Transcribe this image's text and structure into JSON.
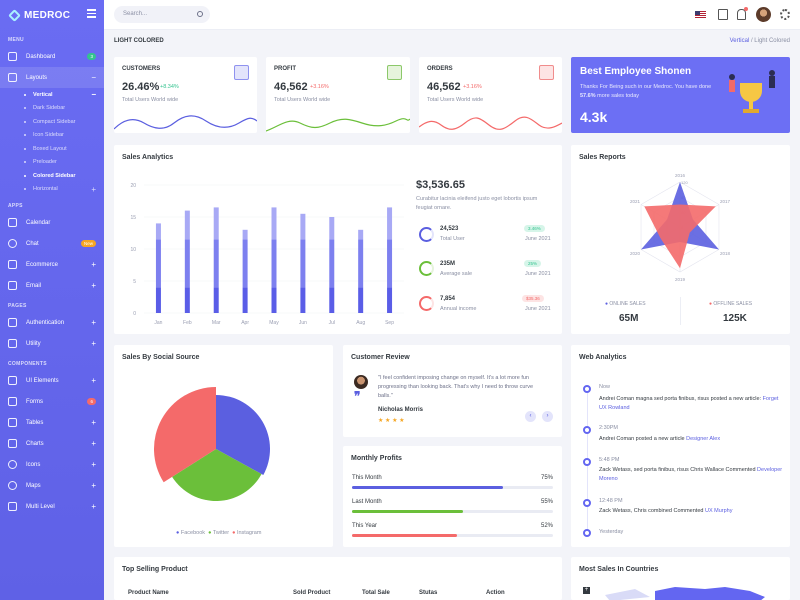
{
  "brand": "MEDROC",
  "sidebar": {
    "menu_heading": "MENU",
    "apps_heading": "APPS",
    "pages_heading": "PAGES",
    "components_heading": "COMPONENTS",
    "dashboard": "Dashboard",
    "dashboard_badge": "3",
    "layouts": "Layouts",
    "layout_items": [
      "Vertical",
      "Dark Sidebar",
      "Compact Sidebar",
      "Icon Sidebar",
      "Boxed Layout",
      "Preloader",
      "Colored Sidebar",
      "Horizontal"
    ],
    "calendar": "Calendar",
    "chat": "Chat",
    "chat_badge": "New",
    "ecommerce": "Ecommerce",
    "email": "Email",
    "authentication": "Authentication",
    "utility": "Utility",
    "ui_elements": "UI Elements",
    "forms": "Forms",
    "forms_badge": "6",
    "tables": "Tables",
    "charts": "Charts",
    "icons": "Icons",
    "maps": "Maps",
    "multi_level": "Multi Level"
  },
  "topbar": {
    "search_placeholder": "Search..."
  },
  "breadcrumb": {
    "title": "LIGHT COLORED",
    "parent": "Vertical",
    "separator": "/",
    "current": "Light Colored"
  },
  "stats": [
    {
      "label": "CUSTOMERS",
      "value": "26.46%",
      "change": "+8.34%",
      "sub": "Total Users World wide",
      "color": "#5b5fe0",
      "change_color": "#34c38f"
    },
    {
      "label": "PROFIT",
      "value": "46,562",
      "change": "+3.16%",
      "sub": "Total Users World wide",
      "color": "#6bbf3a",
      "change_color": "#f46a6a"
    },
    {
      "label": "ORDERS",
      "value": "46,562",
      "change": "+3.16%",
      "sub": "Total Users World wide",
      "color": "#f46a6a",
      "change_color": "#f46a6a"
    }
  ],
  "employee": {
    "title": "Best Employee Shonen",
    "text_pre": "Thanks For Being such in our Medroc. You have done ",
    "percent": "57.6%",
    "text_post": " more sales today",
    "value": "4.3k"
  },
  "sales_analytics": {
    "title": "Sales Analytics",
    "amount": "$3,536.65",
    "desc": "Curabitur lacinia eleifend justo eget lobortis ipsum feugiat ornare.",
    "items": [
      {
        "value": "24,523",
        "label": "Total User",
        "badge": "3.46%",
        "date": "June 2021",
        "color": "#5b5fe0",
        "badge_color": "#34c38f"
      },
      {
        "value": "235M",
        "label": "Average sale",
        "badge": "25%",
        "date": "June 2021",
        "color": "#6bbf3a",
        "badge_color": "#34c38f"
      },
      {
        "value": "7,854",
        "label": "Annual income",
        "badge": "$35.36",
        "date": "June 2021",
        "color": "#f46a6a",
        "badge_color": "#f46a6a"
      }
    ]
  },
  "chart_data": [
    {
      "type": "bar",
      "title": "Sales Analytics",
      "categories": [
        "Jan",
        "Feb",
        "Mar",
        "Apr",
        "May",
        "Jun",
        "Jul",
        "Aug",
        "Sep"
      ],
      "ylim": [
        0,
        20
      ],
      "yticks": [
        0,
        5,
        10,
        15,
        20
      ],
      "series": [
        {
          "values": [
            4,
            4,
            4,
            4,
            4,
            4,
            4,
            4,
            4
          ],
          "color": "#5a5de7"
        },
        {
          "values": [
            7.5,
            7.5,
            7.5,
            7.5,
            7.5,
            7.5,
            7.5,
            7.5,
            7.5
          ],
          "color": "#7d80ef"
        },
        {
          "values": [
            2.5,
            4.5,
            5,
            1.5,
            5,
            4,
            3.5,
            1.5,
            5
          ],
          "color": "#a8a9f5"
        }
      ]
    },
    {
      "type": "radar",
      "title": "Sales Reports",
      "axes": [
        "2016",
        "2017",
        "2018",
        "2019",
        "2020",
        "2021"
      ],
      "rings": [
        0,
        40,
        80,
        120
      ],
      "series": [
        {
          "name": "ONLINE SALES",
          "values": [
            120,
            40,
            120,
            40,
            120,
            40
          ],
          "color": "#5b5fe0"
        },
        {
          "name": "OFFLINE SALES",
          "values": [
            60,
            110,
            30,
            110,
            60,
            110
          ],
          "color": "#f46a6a"
        }
      ]
    },
    {
      "type": "pie",
      "title": "Sales By Social Source",
      "labels": [
        "Facebook",
        "Twitter",
        "Instagram"
      ],
      "values": [
        33,
        33,
        34
      ],
      "colors": [
        "#5b5fe0",
        "#6bbf3a",
        "#f46a6a"
      ]
    }
  ],
  "sales_reports": {
    "title": "Sales Reports",
    "online_label": "ONLINE SALES",
    "online_value": "65M",
    "offline_label": "OFFLINE SALES",
    "offline_value": "125K"
  },
  "social": {
    "title": "Sales By Social Source",
    "legend": [
      "Facebook",
      "Twitter",
      "Instagram"
    ]
  },
  "review": {
    "title": "Customer Review",
    "quote": "\"I feel confident imposing change on myself. It's a lot more fun progressing than looking back. That's why I need to throw curve balls.\"",
    "name": "Nicholas Morris",
    "stars": "★ ★ ★ ★"
  },
  "profits": {
    "title": "Monthly Profits",
    "items": [
      {
        "label": "This Month",
        "value": "75%",
        "pct": 0.75,
        "color": "#5b5fe0"
      },
      {
        "label": "Last Month",
        "value": "55%",
        "pct": 0.55,
        "color": "#6bbf3a"
      },
      {
        "label": "This Year",
        "value": "52%",
        "pct": 0.52,
        "color": "#f46a6a"
      }
    ]
  },
  "web": {
    "title": "Web Analytics",
    "items": [
      {
        "time": "Now",
        "pre": "Andrei Coman magna sed porta finibus, risus posted a new article:",
        "link": "Forget UX Rowland"
      },
      {
        "time": "2:30PM",
        "pre": "Andrei Coman posted a new article",
        "link": "Designer Alex"
      },
      {
        "time": "5:48 PM",
        "pre": "Zack Wetass, sed porta finibus, risus Chris Wallace Commented",
        "link": "Developer Moreno"
      },
      {
        "time": "12:48 PM",
        "pre": "Zack Wetass, Chris combined Commented",
        "link": "UX Murphy"
      },
      {
        "time": "Yesterday",
        "pre": "",
        "link": ""
      }
    ]
  },
  "top_selling": {
    "title": "Top Selling Product",
    "headers": [
      "Product Name",
      "Sold Product",
      "Total Sale",
      "Stutas",
      "Action"
    ]
  },
  "countries": {
    "title": "Most Sales In Countries"
  }
}
